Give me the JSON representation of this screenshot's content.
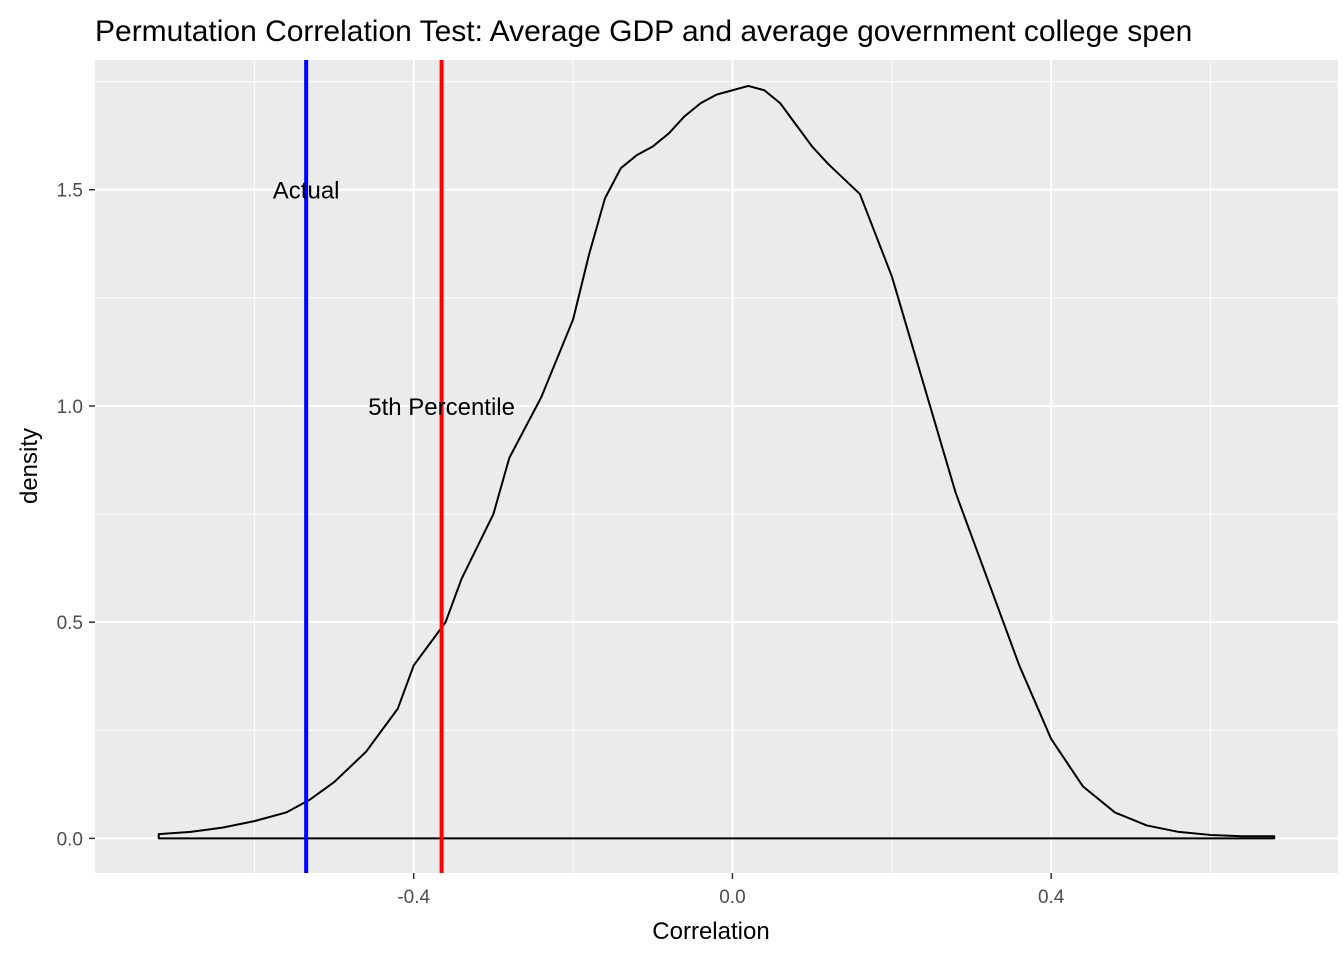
{
  "chart_data": {
    "type": "area",
    "title": "Permutation Correlation Test: Average GDP and average government college spen",
    "xlabel": "Correlation",
    "ylabel": "density",
    "xlim": [
      -0.8,
      0.76
    ],
    "ylim": [
      -0.08,
      1.8
    ],
    "x_ticks": [
      -0.4,
      0.0,
      0.4
    ],
    "x_tick_labels": [
      "-0.4",
      "0.0",
      "0.4"
    ],
    "y_ticks": [
      0.0,
      0.5,
      1.0,
      1.5
    ],
    "y_tick_labels": [
      "0.0",
      "0.5",
      "1.0",
      "1.5"
    ],
    "grid": true,
    "background": "#ebebeb",
    "series": [
      {
        "color": "#000000",
        "x": [
          -0.72,
          -0.68,
          -0.64,
          -0.6,
          -0.56,
          -0.53,
          -0.5,
          -0.46,
          -0.42,
          -0.4,
          -0.36,
          -0.34,
          -0.3,
          -0.28,
          -0.24,
          -0.2,
          -0.18,
          -0.16,
          -0.14,
          -0.12,
          -0.1,
          -0.08,
          -0.06,
          -0.04,
          -0.02,
          0.0,
          0.02,
          0.04,
          0.06,
          0.08,
          0.1,
          0.12,
          0.16,
          0.2,
          0.24,
          0.28,
          0.32,
          0.36,
          0.4,
          0.44,
          0.48,
          0.52,
          0.56,
          0.6,
          0.64,
          0.68
        ],
        "y": [
          0.01,
          0.015,
          0.025,
          0.04,
          0.06,
          0.09,
          0.13,
          0.2,
          0.3,
          0.4,
          0.5,
          0.6,
          0.75,
          0.88,
          1.02,
          1.2,
          1.35,
          1.48,
          1.55,
          1.58,
          1.6,
          1.63,
          1.67,
          1.7,
          1.72,
          1.73,
          1.74,
          1.73,
          1.7,
          1.65,
          1.6,
          1.56,
          1.49,
          1.3,
          1.05,
          0.8,
          0.6,
          0.4,
          0.23,
          0.12,
          0.06,
          0.03,
          0.015,
          0.008,
          0.005,
          0.005
        ]
      }
    ],
    "vlines": [
      {
        "label": "Actual",
        "x": -0.535,
        "color": "#0000ff",
        "label_y": 1.5
      },
      {
        "label": "5th Percentile",
        "x": -0.365,
        "color": "#ff0000",
        "label_y": 1.0
      }
    ]
  }
}
